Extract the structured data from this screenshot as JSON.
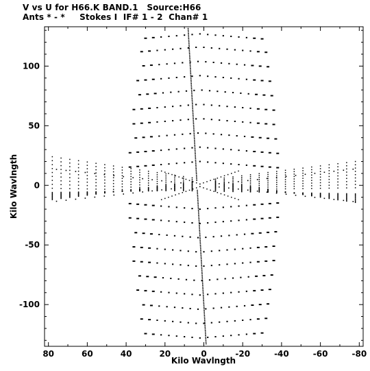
{
  "header": {
    "line1": "V vs U for H66.K BAND.1   Source:H66",
    "line2": "Ants * - *     Stokes I  IF# 1 - 2  Chan# 1"
  },
  "chart_data": {
    "type": "scatter",
    "title": "V vs U for H66.K BAND.1   Source:H66",
    "subtitle": "Ants * - *     Stokes I  IF# 1 - 2  Chan# 1",
    "xlabel": "Kilo Wavlngth",
    "ylabel": "Kilo Wavlngth",
    "xlim": [
      82,
      -82
    ],
    "ylim": [
      -135,
      133
    ],
    "x_reversed": true,
    "grid": false,
    "x_ticks": [
      80,
      60,
      40,
      20,
      0,
      -20,
      -40,
      -60,
      -80
    ],
    "x_tick_labels": [
      "80",
      "60",
      "40",
      "20",
      "0",
      "-20",
      "-40",
      "-60",
      "-80"
    ],
    "y_ticks": [
      -100,
      -50,
      0,
      50,
      100
    ],
    "y_tick_labels": [
      "-100",
      "-50",
      "0",
      "50",
      "100"
    ],
    "arms": [
      {
        "u": [
          32,
          28,
          24,
          20,
          16,
          12,
          8,
          5,
          2,
          -1,
          -4,
          -7,
          -10,
          -13,
          -16,
          -20
        ],
        "v_slope": 0.35
      },
      {
        "u": [
          -32,
          -28,
          -24,
          -20,
          -16,
          -12,
          -8,
          -5,
          -2,
          1,
          4,
          7,
          10,
          13,
          16,
          20
        ],
        "v_slope": -0.35
      }
    ],
    "series": [
      {
        "type": "radial",
        "angle_deg": 88,
        "r_max": 133,
        "step": 1.4
      },
      {
        "type": "radial",
        "angle_deg": 10,
        "r_max": 78,
        "step": 5
      },
      {
        "type": "radial",
        "angle_deg": -10,
        "r_max": 78,
        "step": 5
      }
    ],
    "v_rows": [
      123,
      112,
      100,
      88,
      76,
      64,
      52,
      40,
      28,
      16,
      -16,
      -28,
      -40,
      -52,
      -64,
      -76,
      -88,
      -100,
      -112,
      -124
    ],
    "row_u_half_width": [
      30,
      32,
      33,
      34,
      35,
      36,
      36,
      37,
      38,
      38,
      38,
      38,
      37,
      36,
      36,
      35,
      34,
      33,
      32,
      30
    ]
  }
}
